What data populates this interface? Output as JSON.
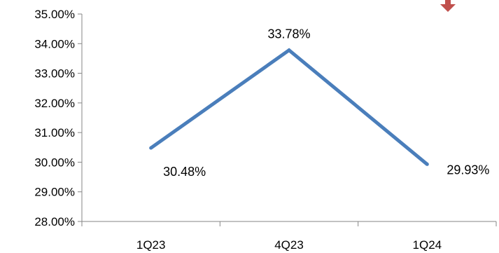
{
  "chart_data": {
    "type": "line",
    "categories": [
      "1Q23",
      "4Q23",
      "1Q24"
    ],
    "series": [
      {
        "values": [
          30.48,
          33.78,
          29.93
        ],
        "color": "#4a7ebb"
      }
    ],
    "data_labels": [
      "30.48%",
      "33.78%",
      "29.93%"
    ],
    "ylim": [
      28,
      35
    ],
    "y_ticks": [
      28,
      29,
      30,
      31,
      32,
      33,
      34,
      35
    ],
    "y_tick_labels": [
      "28.00%",
      "29.00%",
      "30.00%",
      "31.00%",
      "32.00%",
      "33.00%",
      "34.00%",
      "35.00%"
    ],
    "grid": false,
    "legend": "none",
    "title": "",
    "xlabel": "",
    "ylabel": "",
    "indicator": {
      "icon": "down-arrow-icon",
      "color": "#c0504d"
    }
  }
}
